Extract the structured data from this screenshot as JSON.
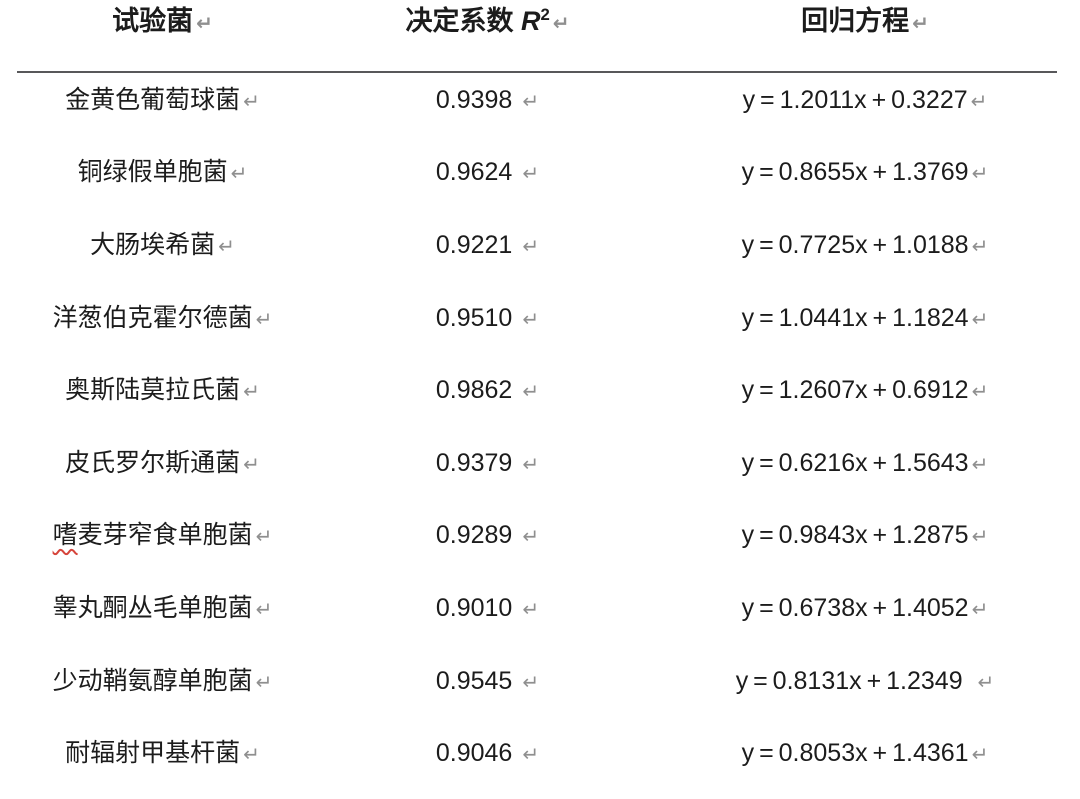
{
  "table": {
    "header": {
      "col1": "试验菌",
      "col2_prefix": "决定系数 ",
      "col2_symbol": "R",
      "col2_superscript": "2",
      "col3": "回归方程"
    },
    "rows": [
      {
        "name": "金黄色葡萄球菌",
        "r2": "0.9398",
        "equation": "y = 1.2011x + 0.3227"
      },
      {
        "name": "铜绿假单胞菌",
        "r2": "0.9624",
        "equation": "y = 0.8655x + 1.3769"
      },
      {
        "name": "大肠埃希菌",
        "r2": "0.9221",
        "equation": "y = 0.7725x + 1.0188"
      },
      {
        "name": "洋葱伯克霍尔德菌",
        "r2": "0.9510",
        "equation": "y = 1.0441x + 1.1824"
      },
      {
        "name": "奥斯陆莫拉氏菌",
        "r2": "0.9862",
        "equation": "y = 1.2607x + 0.6912"
      },
      {
        "name": "皮氏罗尔斯通菌",
        "r2": "0.9379",
        "equation": "y = 0.6216x + 1.5643"
      },
      {
        "name": "嗜麦芽窄食单胞菌",
        "name_head": "嗜",
        "name_tail": "麦芽窄食单胞菌",
        "spellcheck_underline": true,
        "r2": "0.9289",
        "equation": "y = 0.9843x + 1.2875"
      },
      {
        "name": "睾丸酮丛毛单胞菌",
        "r2": "0.9010",
        "equation": "y = 0.6738x + 1.4052"
      },
      {
        "name": "少动鞘氨醇单胞菌",
        "r2": "0.9545",
        "equation": "y = 0.8131x + 1.2349 "
      },
      {
        "name": "耐辐射甲基杆菌",
        "r2": "0.9046",
        "equation": "y = 0.8053x + 1.4361"
      }
    ]
  },
  "formatting": {
    "return_mark": "↵",
    "return_mark_color": "#8f8f8f",
    "text_color": "#1c1c1c",
    "divider_color": "#58585a",
    "spellcheck_color": "#d6453c"
  }
}
